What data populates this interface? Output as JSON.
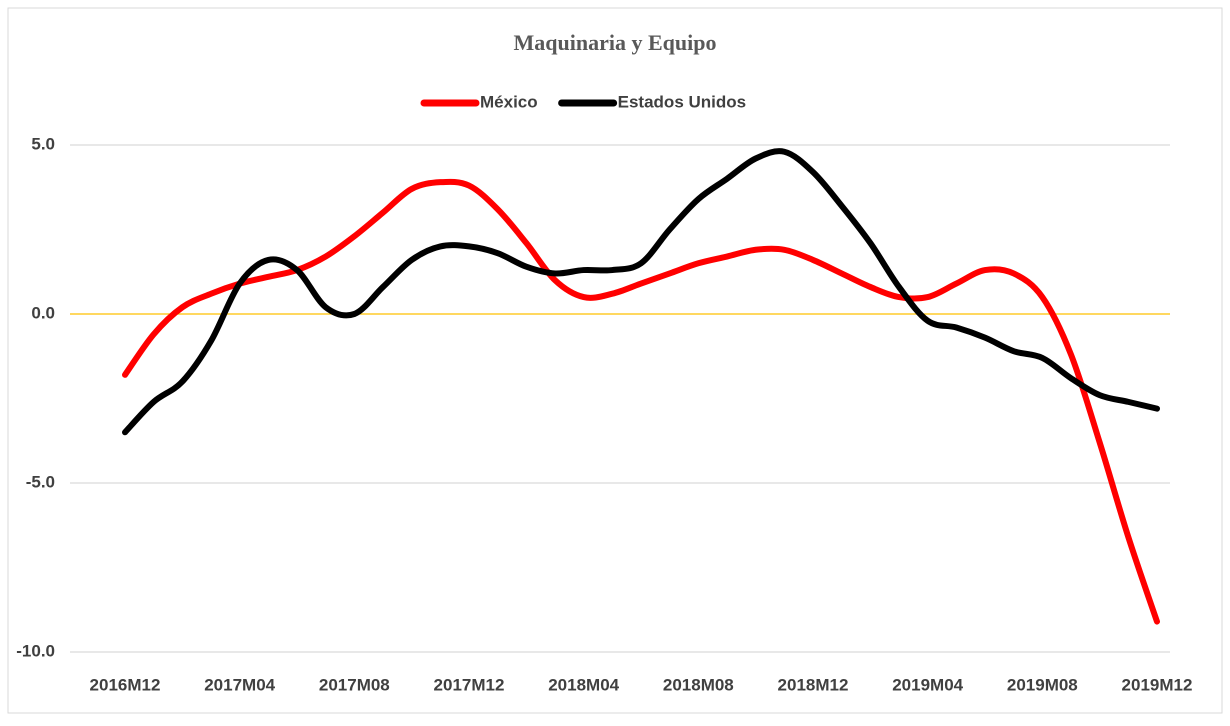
{
  "chart_data": {
    "type": "line",
    "title": "Maquinaria y Equipo",
    "categories": [
      "2016M12",
      null,
      null,
      null,
      "2017M04",
      null,
      null,
      null,
      "2017M08",
      null,
      null,
      null,
      "2017M12",
      null,
      null,
      null,
      "2018M04",
      null,
      null,
      null,
      "2018M08",
      null,
      null,
      null,
      "2018M12",
      null,
      null,
      null,
      "2019M04",
      null,
      null,
      null,
      "2019M08",
      null,
      null,
      null,
      "2019M12"
    ],
    "series": [
      {
        "name": "México",
        "color": "#ff0000",
        "values": [
          -1.8,
          -0.6,
          0.2,
          0.6,
          0.9,
          1.1,
          1.3,
          1.7,
          2.3,
          3.0,
          3.7,
          3.9,
          3.8,
          3.1,
          2.1,
          1.0,
          0.5,
          0.6,
          0.9,
          1.2,
          1.5,
          1.7,
          1.9,
          1.9,
          1.6,
          1.2,
          0.8,
          0.5,
          0.5,
          0.9,
          1.3,
          1.2,
          0.5,
          -1.2,
          -3.8,
          -6.6,
          -9.1
        ]
      },
      {
        "name": "Estados Unidos",
        "color": "#000000",
        "values": [
          -3.5,
          -2.6,
          -2.0,
          -0.8,
          0.9,
          1.6,
          1.3,
          0.2,
          0.0,
          0.8,
          1.6,
          2.0,
          2.0,
          1.8,
          1.4,
          1.2,
          1.3,
          1.3,
          1.5,
          2.5,
          3.4,
          4.0,
          4.6,
          4.8,
          4.2,
          3.2,
          2.1,
          0.8,
          -0.2,
          -0.4,
          -0.7,
          -1.1,
          -1.3,
          -1.9,
          -2.4,
          -2.6,
          -2.8
        ]
      }
    ],
    "ylim": [
      -10,
      5
    ],
    "yticks": [
      {
        "value": -10,
        "label": "-10.0"
      },
      {
        "value": -5,
        "label": "-5.0"
      },
      {
        "value": 0,
        "label": "0.0"
      },
      {
        "value": 5,
        "label": "5.0"
      }
    ],
    "grid": true,
    "legend": "top",
    "zero_line_color": "#ffc000"
  }
}
